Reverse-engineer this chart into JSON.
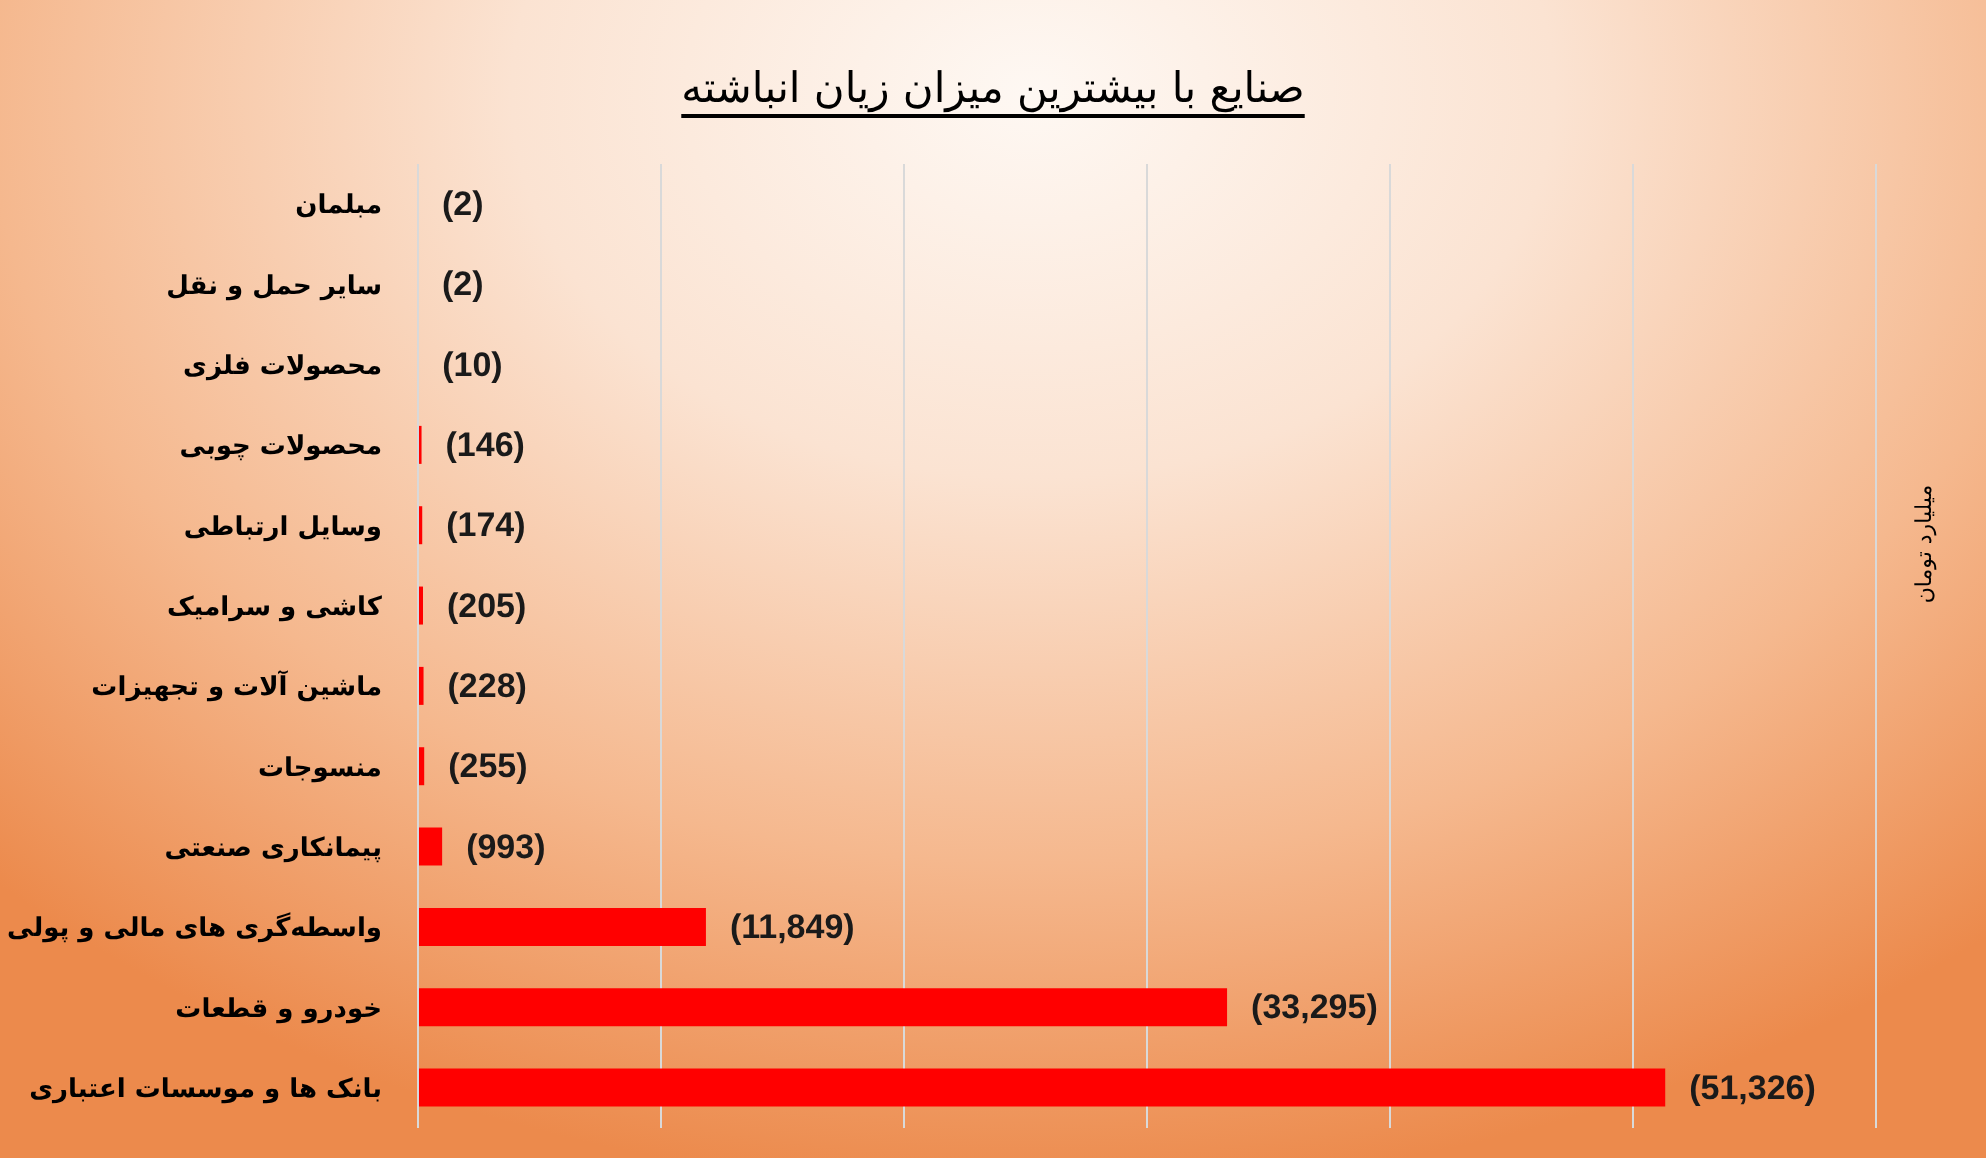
{
  "chart_data": {
    "type": "bar",
    "orientation": "horizontal",
    "title": "صنایع با بیشترین میزان زیان انباشته",
    "annotations": [
      "میلیارد تومان"
    ],
    "categories": [
      "مبلمان",
      "سایر حمل و نقل",
      "محصولات فلزی",
      "محصولات چوبی",
      "وسایل ارتباطی",
      "کاشی و سرامیک",
      "ماشین آلات و تجهیزات",
      "منسوجات",
      "پیمانکاری صنعتی",
      "واسطه‌گری های مالی و پولی",
      "خودرو و قطعات",
      "بانک ها و موسسات اعتباری"
    ],
    "values": [
      2,
      2,
      10,
      146,
      174,
      205,
      228,
      255,
      993,
      11849,
      33295,
      51326
    ],
    "value_labels": [
      "(2)",
      "(2)",
      "(10)",
      "(146)",
      "(174)",
      "(205)",
      "(228)",
      "(255)",
      "(993)",
      "(11,849)",
      "(33,295)",
      "(51,326)"
    ],
    "color": "#ff0000",
    "xlim": [
      0,
      60000
    ],
    "xticks": [
      {
        "value": 0,
        "label": null
      },
      {
        "value": 10000,
        "label": null
      },
      {
        "value": 20000,
        "label": null
      },
      {
        "value": 30000,
        "label": null
      },
      {
        "value": 40000,
        "label": null
      },
      {
        "value": 50000,
        "label": null
      },
      {
        "value": 60000,
        "label": null
      }
    ],
    "grid": "x",
    "tick_labels": "y"
  }
}
